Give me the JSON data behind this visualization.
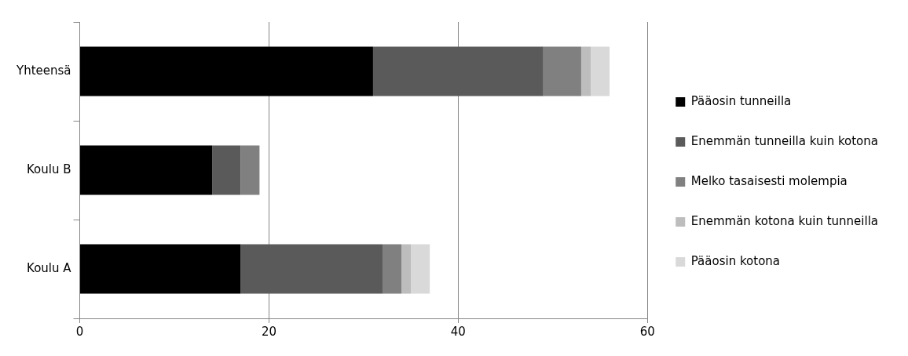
{
  "chart_data": {
    "type": "bar",
    "orientation": "horizontal",
    "stacked": true,
    "categories": [
      "Yhteensä",
      "Koulu B",
      "Koulu A"
    ],
    "series": [
      {
        "name": "Pääosin tunneilla",
        "color": "#000000",
        "values": [
          31,
          14,
          17
        ]
      },
      {
        "name": "Enemmän tunneilla kuin kotona",
        "color": "#5a5a5a",
        "values": [
          18,
          3,
          15
        ]
      },
      {
        "name": "Melko tasaisesti molempia",
        "color": "#808080",
        "values": [
          4,
          2,
          2
        ]
      },
      {
        "name": "Enemmän kotona kuin tunneilla",
        "color": "#bdbdbd",
        "values": [
          1,
          0,
          1
        ]
      },
      {
        "name": "Pääosin kotona",
        "color": "#d9d9d9",
        "values": [
          2,
          0,
          2
        ]
      }
    ],
    "xlim": [
      0,
      60
    ],
    "xticks": [
      0,
      20,
      40,
      60
    ],
    "grid": "x",
    "legend": "right"
  }
}
